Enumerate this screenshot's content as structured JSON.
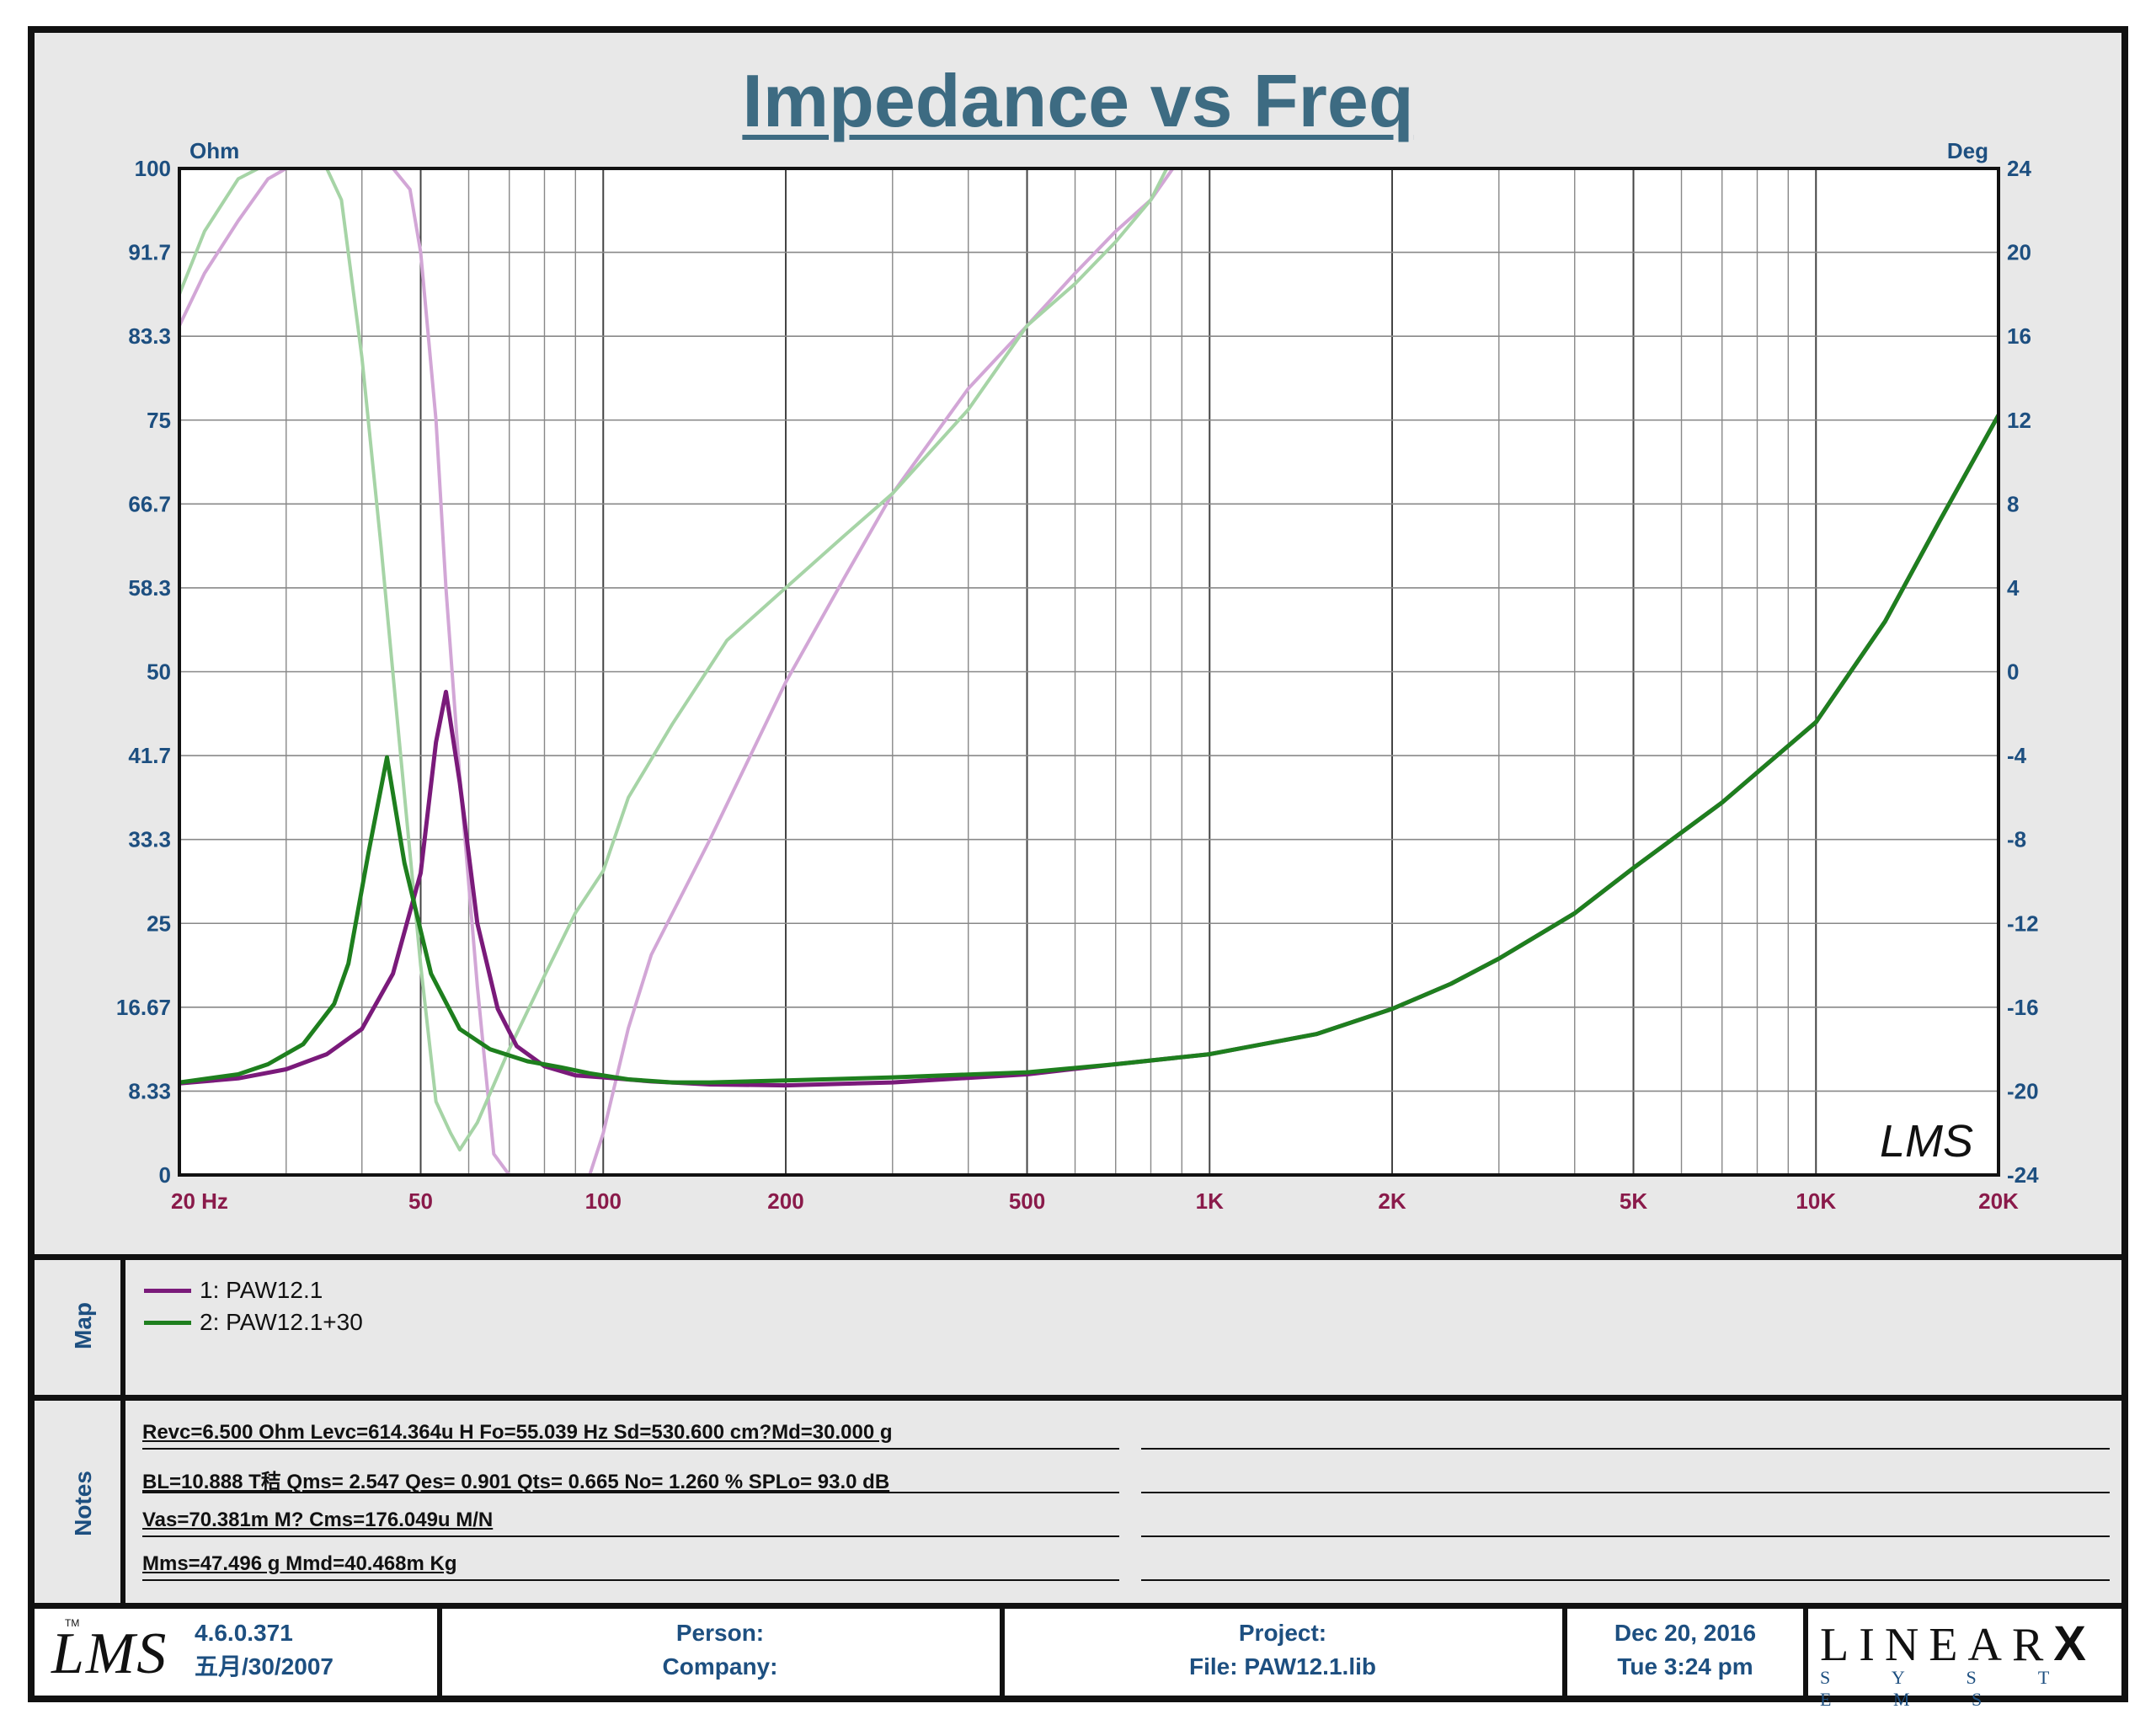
{
  "chart_data": {
    "type": "line",
    "title": "Impedance vs Freq",
    "x_scale": "log",
    "xlim": [
      20,
      20000
    ],
    "x_tick_labels": [
      {
        "value": 20,
        "label": "20  Hz"
      },
      {
        "value": 50,
        "label": "50"
      },
      {
        "value": 100,
        "label": "100"
      },
      {
        "value": 200,
        "label": "200"
      },
      {
        "value": 500,
        "label": "500"
      },
      {
        "value": 1000,
        "label": "1K"
      },
      {
        "value": 2000,
        "label": "2K"
      },
      {
        "value": 5000,
        "label": "5K"
      },
      {
        "value": 10000,
        "label": "10K"
      },
      {
        "value": 20000,
        "label": "20K"
      }
    ],
    "ylabel_left": "Ohm",
    "ylim_left": [
      0,
      100
    ],
    "y_tick_labels_left": [
      "0",
      "8.33",
      "16.67",
      "25",
      "33.3",
      "41.7",
      "50",
      "58.3",
      "66.7",
      "75",
      "83.3",
      "91.7",
      "100"
    ],
    "ylabel_right": "Deg",
    "ylim_right": [
      -24,
      24
    ],
    "y_tick_labels_right": [
      "-24",
      "-20",
      "-16",
      "-12",
      "-8",
      "-4",
      "0",
      "4",
      "8",
      "12",
      "16",
      "20",
      "24"
    ],
    "grid": true,
    "series": [
      {
        "name": "1: PAW12.1",
        "kind": "impedance",
        "axis": "left",
        "color": "#7a1a7a",
        "x": [
          20,
          25,
          30,
          35,
          40,
          45,
          50,
          53,
          55.04,
          58,
          62,
          67,
          72,
          80,
          90,
          100,
          120,
          150,
          200,
          300,
          500,
          700,
          1000,
          1500,
          2000,
          2500,
          3000,
          4000,
          5000,
          7000,
          10000,
          13000,
          16000,
          20000
        ],
        "y": [
          9.1,
          9.6,
          10.5,
          12,
          14.5,
          20,
          30,
          43,
          48,
          39,
          25,
          16.5,
          12.8,
          10.8,
          9.9,
          9.7,
          9.3,
          9.0,
          8.9,
          9.2,
          10,
          11,
          12,
          14,
          16.5,
          19,
          21.5,
          26,
          30.5,
          37,
          45,
          55,
          65,
          75.5
        ]
      },
      {
        "name": "2: PAW12.1+30",
        "kind": "impedance",
        "axis": "left",
        "color": "#1e7f1e",
        "x": [
          20,
          25,
          28,
          32,
          36,
          38,
          41,
          44,
          47,
          52,
          58,
          65,
          75,
          85,
          95,
          110,
          130,
          150,
          200,
          300,
          500,
          700,
          1000,
          1500,
          2000,
          2500,
          3000,
          4000,
          5000,
          7000,
          10000,
          13000,
          16000,
          20000
        ],
        "y": [
          9.2,
          10,
          11,
          13,
          17,
          21,
          32,
          41.5,
          31,
          20,
          14.5,
          12.5,
          11.3,
          10.7,
          10.1,
          9.5,
          9.2,
          9.2,
          9.4,
          9.7,
          10.2,
          11,
          12,
          14,
          16.5,
          19,
          21.5,
          26,
          30.5,
          37,
          45,
          55,
          65,
          75.5
        ]
      },
      {
        "name": "1: PAW12.1",
        "kind": "phase",
        "axis": "right",
        "color": "#d2a6d6",
        "x": [
          20,
          22,
          25,
          28,
          30,
          35,
          40,
          45,
          48,
          50,
          53,
          55.04,
          58,
          62,
          66,
          70,
          80,
          90,
          95,
          100,
          110,
          120,
          150,
          200,
          250,
          300,
          400,
          500,
          600,
          700,
          800,
          870,
          1000,
          2000,
          5000,
          10000,
          20000
        ],
        "y": [
          16.5,
          19,
          21.5,
          23.5,
          24,
          24,
          24,
          24,
          23,
          20,
          12,
          4,
          -5,
          -15,
          -23,
          -24,
          -24,
          -24,
          -24,
          -22,
          -17,
          -13.5,
          -8,
          -0.5,
          4.5,
          8.5,
          13.5,
          16.5,
          19,
          21,
          22.5,
          24,
          24,
          24,
          24,
          24,
          24
        ]
      },
      {
        "name": "2: PAW12.1+30",
        "kind": "phase",
        "axis": "right",
        "color": "#a6d4a6",
        "x": [
          20,
          22,
          25,
          27,
          30,
          35,
          37,
          40,
          43,
          46,
          50,
          53,
          56,
          58,
          62,
          70,
          80,
          90,
          100,
          110,
          130,
          160,
          200,
          250,
          300,
          400,
          500,
          600,
          700,
          800,
          850,
          1000,
          2000,
          5000,
          10000,
          20000
        ],
        "y": [
          18,
          21,
          23.5,
          24,
          24,
          24,
          22.5,
          15,
          6,
          -3,
          -14,
          -20.5,
          -22,
          -22.8,
          -21.5,
          -18,
          -14.5,
          -11.5,
          -9.5,
          -6,
          -2.5,
          1.5,
          4,
          6.5,
          8.5,
          12.5,
          16.5,
          18.5,
          20.5,
          22.5,
          24,
          24,
          24,
          24,
          24,
          24
        ]
      }
    ],
    "legend_placement": "below"
  },
  "map": {
    "label": "Map",
    "items": [
      {
        "label": "1: PAW12.1",
        "color": "#7a1a7a"
      },
      {
        "label": "2: PAW12.1+30",
        "color": "#1e7f1e"
      }
    ]
  },
  "notes": {
    "label": "Notes",
    "lines": [
      "Revc=6.500 Ohm  Levc=614.364u H  Fo=55.039 Hz  Sd=530.600 cm?Md=30.000 g",
      "BL=10.888 T秸  Qms= 2.547  Qes= 0.901  Qts= 0.665  No= 1.260 %  SPLo= 93.0 dB",
      "Vas=70.381m M? Cms=176.049u M/N",
      "Mms=47.496 g  Mmd=40.468m Kg"
    ]
  },
  "footer": {
    "logo_text": "LMS",
    "version": "4.6.0.371",
    "version_date": "五月/30/2007",
    "person_label": "Person:",
    "company_label": "Company:",
    "project_label": "Project:",
    "file_label": "File: PAW12.1.lib",
    "date": "Dec 20, 2016",
    "time": "Tue  3:24 pm",
    "brand_name": "LINEAR",
    "brand_x": "X",
    "brand_sub": "S Y S T E M S"
  },
  "plot_logo": "LMS"
}
